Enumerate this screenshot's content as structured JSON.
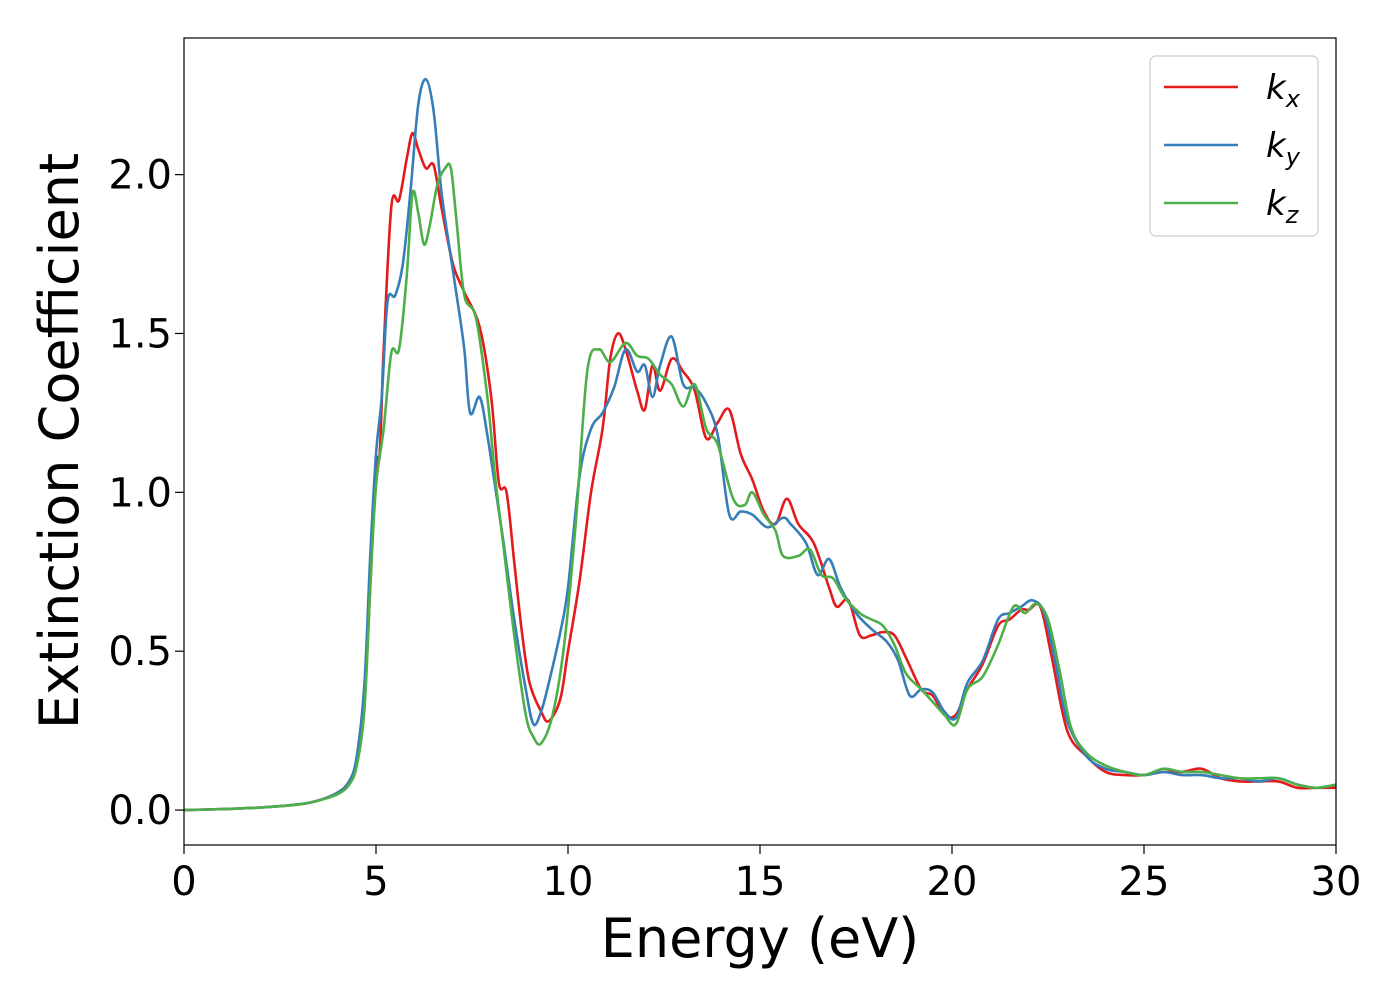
{
  "chart_data": {
    "type": "line",
    "title": "",
    "xlabel": "Energy (eV)",
    "ylabel": "Extinction Coefficient",
    "xlim": [
      0,
      30
    ],
    "ylim": [
      -0.11,
      2.43
    ],
    "xticks": [
      0,
      5,
      10,
      15,
      20,
      25,
      30
    ],
    "xtick_labels": [
      "0",
      "5",
      "10",
      "15",
      "20",
      "25",
      "30"
    ],
    "yticks": [
      0.0,
      0.5,
      1.0,
      1.5,
      2.0
    ],
    "ytick_labels": [
      "0.0",
      "0.5",
      "1.0",
      "1.5",
      "2.0"
    ],
    "grid": false,
    "legend_position": "top-right",
    "series": [
      {
        "name": "k",
        "subscript": "x",
        "color": "#e41a1c",
        "points": [
          [
            0,
            0.0
          ],
          [
            1,
            0.003
          ],
          [
            2,
            0.008
          ],
          [
            3,
            0.018
          ],
          [
            3.5,
            0.03
          ],
          [
            4,
            0.055
          ],
          [
            4.3,
            0.09
          ],
          [
            4.5,
            0.16
          ],
          [
            4.7,
            0.35
          ],
          [
            4.85,
            0.7
          ],
          [
            5.0,
            1.08
          ],
          [
            5.1,
            1.13
          ],
          [
            5.2,
            1.45
          ],
          [
            5.4,
            1.9
          ],
          [
            5.6,
            1.92
          ],
          [
            5.8,
            2.05
          ],
          [
            5.95,
            2.13
          ],
          [
            6.1,
            2.08
          ],
          [
            6.3,
            2.02
          ],
          [
            6.5,
            2.03
          ],
          [
            6.7,
            1.9
          ],
          [
            7.0,
            1.72
          ],
          [
            7.3,
            1.63
          ],
          [
            7.7,
            1.52
          ],
          [
            8.0,
            1.3
          ],
          [
            8.2,
            1.03
          ],
          [
            8.4,
            1.0
          ],
          [
            8.6,
            0.78
          ],
          [
            8.8,
            0.56
          ],
          [
            9.0,
            0.4
          ],
          [
            9.3,
            0.31
          ],
          [
            9.5,
            0.28
          ],
          [
            9.8,
            0.35
          ],
          [
            10.0,
            0.5
          ],
          [
            10.3,
            0.72
          ],
          [
            10.6,
            1.0
          ],
          [
            10.9,
            1.2
          ],
          [
            11.1,
            1.42
          ],
          [
            11.3,
            1.5
          ],
          [
            11.5,
            1.45
          ],
          [
            11.8,
            1.32
          ],
          [
            12.0,
            1.26
          ],
          [
            12.2,
            1.4
          ],
          [
            12.4,
            1.32
          ],
          [
            12.7,
            1.42
          ],
          [
            13.0,
            1.38
          ],
          [
            13.3,
            1.32
          ],
          [
            13.6,
            1.17
          ],
          [
            13.9,
            1.22
          ],
          [
            14.2,
            1.26
          ],
          [
            14.5,
            1.12
          ],
          [
            14.8,
            1.04
          ],
          [
            15.1,
            0.94
          ],
          [
            15.4,
            0.9
          ],
          [
            15.7,
            0.98
          ],
          [
            16.0,
            0.9
          ],
          [
            16.4,
            0.84
          ],
          [
            16.8,
            0.7
          ],
          [
            17.0,
            0.64
          ],
          [
            17.3,
            0.66
          ],
          [
            17.6,
            0.55
          ],
          [
            17.9,
            0.55
          ],
          [
            18.2,
            0.56
          ],
          [
            18.5,
            0.55
          ],
          [
            18.8,
            0.48
          ],
          [
            19.2,
            0.38
          ],
          [
            19.5,
            0.36
          ],
          [
            19.8,
            0.3
          ],
          [
            20.1,
            0.3
          ],
          [
            20.4,
            0.38
          ],
          [
            20.8,
            0.46
          ],
          [
            21.2,
            0.58
          ],
          [
            21.5,
            0.6
          ],
          [
            21.8,
            0.63
          ],
          [
            22.0,
            0.63
          ],
          [
            22.3,
            0.64
          ],
          [
            22.6,
            0.48
          ],
          [
            23.0,
            0.25
          ],
          [
            23.5,
            0.17
          ],
          [
            24.0,
            0.12
          ],
          [
            24.5,
            0.11
          ],
          [
            25.0,
            0.11
          ],
          [
            25.5,
            0.12
          ],
          [
            26.0,
            0.12
          ],
          [
            26.5,
            0.13
          ],
          [
            27.0,
            0.1
          ],
          [
            27.5,
            0.09
          ],
          [
            28.0,
            0.09
          ],
          [
            28.5,
            0.09
          ],
          [
            29.0,
            0.07
          ],
          [
            29.5,
            0.07
          ],
          [
            30.0,
            0.07
          ]
        ]
      },
      {
        "name": "k",
        "subscript": "y",
        "color": "#377eb8",
        "points": [
          [
            0,
            0.0
          ],
          [
            1,
            0.003
          ],
          [
            2,
            0.008
          ],
          [
            3,
            0.018
          ],
          [
            3.5,
            0.03
          ],
          [
            4,
            0.055
          ],
          [
            4.3,
            0.09
          ],
          [
            4.5,
            0.17
          ],
          [
            4.7,
            0.4
          ],
          [
            4.85,
            0.8
          ],
          [
            5.0,
            1.12
          ],
          [
            5.15,
            1.3
          ],
          [
            5.3,
            1.6
          ],
          [
            5.5,
            1.62
          ],
          [
            5.7,
            1.72
          ],
          [
            5.9,
            1.95
          ],
          [
            6.1,
            2.22
          ],
          [
            6.3,
            2.3
          ],
          [
            6.5,
            2.2
          ],
          [
            6.7,
            1.95
          ],
          [
            6.9,
            1.78
          ],
          [
            7.1,
            1.62
          ],
          [
            7.3,
            1.45
          ],
          [
            7.45,
            1.25
          ],
          [
            7.7,
            1.3
          ],
          [
            7.9,
            1.18
          ],
          [
            8.1,
            1.02
          ],
          [
            8.3,
            0.86
          ],
          [
            8.6,
            0.6
          ],
          [
            8.9,
            0.38
          ],
          [
            9.1,
            0.27
          ],
          [
            9.3,
            0.31
          ],
          [
            9.5,
            0.4
          ],
          [
            9.8,
            0.56
          ],
          [
            10.0,
            0.7
          ],
          [
            10.3,
            1.05
          ],
          [
            10.6,
            1.2
          ],
          [
            10.9,
            1.25
          ],
          [
            11.2,
            1.33
          ],
          [
            11.5,
            1.45
          ],
          [
            11.8,
            1.38
          ],
          [
            12.0,
            1.4
          ],
          [
            12.2,
            1.3
          ],
          [
            12.4,
            1.4
          ],
          [
            12.7,
            1.49
          ],
          [
            13.0,
            1.34
          ],
          [
            13.3,
            1.33
          ],
          [
            13.6,
            1.28
          ],
          [
            13.9,
            1.18
          ],
          [
            14.2,
            0.93
          ],
          [
            14.5,
            0.94
          ],
          [
            14.8,
            0.93
          ],
          [
            15.2,
            0.89
          ],
          [
            15.6,
            0.92
          ],
          [
            15.8,
            0.9
          ],
          [
            16.2,
            0.84
          ],
          [
            16.5,
            0.74
          ],
          [
            16.8,
            0.79
          ],
          [
            17.1,
            0.7
          ],
          [
            17.5,
            0.62
          ],
          [
            17.9,
            0.57
          ],
          [
            18.3,
            0.53
          ],
          [
            18.6,
            0.47
          ],
          [
            18.9,
            0.36
          ],
          [
            19.2,
            0.38
          ],
          [
            19.5,
            0.37
          ],
          [
            19.8,
            0.31
          ],
          [
            20.1,
            0.29
          ],
          [
            20.4,
            0.4
          ],
          [
            20.8,
            0.47
          ],
          [
            21.2,
            0.6
          ],
          [
            21.5,
            0.62
          ],
          [
            21.8,
            0.64
          ],
          [
            22.1,
            0.66
          ],
          [
            22.4,
            0.62
          ],
          [
            22.7,
            0.46
          ],
          [
            23.0,
            0.28
          ],
          [
            23.5,
            0.17
          ],
          [
            24.0,
            0.13
          ],
          [
            24.5,
            0.12
          ],
          [
            25.0,
            0.11
          ],
          [
            25.5,
            0.12
          ],
          [
            26.0,
            0.11
          ],
          [
            26.5,
            0.11
          ],
          [
            27.0,
            0.1
          ],
          [
            27.5,
            0.1
          ],
          [
            28.0,
            0.09
          ],
          [
            28.5,
            0.1
          ],
          [
            29.0,
            0.08
          ],
          [
            29.5,
            0.07
          ],
          [
            30.0,
            0.08
          ]
        ]
      },
      {
        "name": "k",
        "subscript": "z",
        "color": "#4daf4a",
        "points": [
          [
            0,
            0.0
          ],
          [
            1,
            0.003
          ],
          [
            2,
            0.008
          ],
          [
            3,
            0.018
          ],
          [
            3.5,
            0.03
          ],
          [
            4,
            0.05
          ],
          [
            4.3,
            0.08
          ],
          [
            4.5,
            0.14
          ],
          [
            4.7,
            0.32
          ],
          [
            4.85,
            0.7
          ],
          [
            5.0,
            1.02
          ],
          [
            5.2,
            1.2
          ],
          [
            5.4,
            1.44
          ],
          [
            5.6,
            1.45
          ],
          [
            5.8,
            1.68
          ],
          [
            5.95,
            1.94
          ],
          [
            6.1,
            1.88
          ],
          [
            6.25,
            1.78
          ],
          [
            6.4,
            1.84
          ],
          [
            6.6,
            1.97
          ],
          [
            6.8,
            2.02
          ],
          [
            6.95,
            2.02
          ],
          [
            7.1,
            1.85
          ],
          [
            7.3,
            1.62
          ],
          [
            7.6,
            1.55
          ],
          [
            7.9,
            1.3
          ],
          [
            8.1,
            1.05
          ],
          [
            8.3,
            0.85
          ],
          [
            8.6,
            0.55
          ],
          [
            8.9,
            0.3
          ],
          [
            9.1,
            0.23
          ],
          [
            9.3,
            0.21
          ],
          [
            9.6,
            0.3
          ],
          [
            9.9,
            0.52
          ],
          [
            10.2,
            0.9
          ],
          [
            10.5,
            1.38
          ],
          [
            10.8,
            1.45
          ],
          [
            11.1,
            1.41
          ],
          [
            11.5,
            1.47
          ],
          [
            11.8,
            1.43
          ],
          [
            12.1,
            1.42
          ],
          [
            12.4,
            1.37
          ],
          [
            12.7,
            1.34
          ],
          [
            13.0,
            1.27
          ],
          [
            13.3,
            1.34
          ],
          [
            13.6,
            1.2
          ],
          [
            13.9,
            1.15
          ],
          [
            14.3,
            0.98
          ],
          [
            14.6,
            0.96
          ],
          [
            14.8,
            1.0
          ],
          [
            15.1,
            0.93
          ],
          [
            15.4,
            0.88
          ],
          [
            15.6,
            0.8
          ],
          [
            16.0,
            0.8
          ],
          [
            16.3,
            0.82
          ],
          [
            16.6,
            0.74
          ],
          [
            16.9,
            0.73
          ],
          [
            17.2,
            0.67
          ],
          [
            17.6,
            0.62
          ],
          [
            17.9,
            0.6
          ],
          [
            18.2,
            0.58
          ],
          [
            18.5,
            0.52
          ],
          [
            18.8,
            0.43
          ],
          [
            19.2,
            0.38
          ],
          [
            19.5,
            0.34
          ],
          [
            19.8,
            0.3
          ],
          [
            20.1,
            0.27
          ],
          [
            20.4,
            0.38
          ],
          [
            20.8,
            0.42
          ],
          [
            21.2,
            0.52
          ],
          [
            21.6,
            0.64
          ],
          [
            21.9,
            0.62
          ],
          [
            22.2,
            0.65
          ],
          [
            22.5,
            0.6
          ],
          [
            22.8,
            0.44
          ],
          [
            23.1,
            0.26
          ],
          [
            23.5,
            0.18
          ],
          [
            24.0,
            0.14
          ],
          [
            24.5,
            0.12
          ],
          [
            25.0,
            0.11
          ],
          [
            25.5,
            0.13
          ],
          [
            26.0,
            0.12
          ],
          [
            26.5,
            0.12
          ],
          [
            27.0,
            0.11
          ],
          [
            27.5,
            0.1
          ],
          [
            28.0,
            0.1
          ],
          [
            28.5,
            0.1
          ],
          [
            29.0,
            0.08
          ],
          [
            29.5,
            0.07
          ],
          [
            30.0,
            0.08
          ]
        ]
      }
    ]
  }
}
